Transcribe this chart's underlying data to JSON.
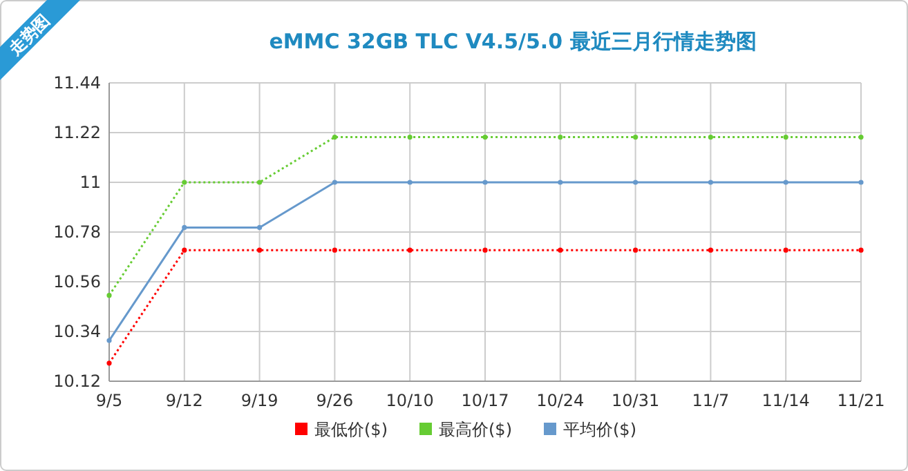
{
  "chart_data": {
    "type": "line",
    "title": "eMMC 32GB TLC V4.5/5.0 最近三月行情走势图",
    "annotations": [
      "走势图"
    ],
    "categories": [
      "9/5",
      "9/12",
      "9/19",
      "9/26",
      "10/10",
      "10/17",
      "10/24",
      "10/31",
      "11/7",
      "11/14",
      "11/21"
    ],
    "series": [
      {
        "name": "最低价($)",
        "color": "#ff0000",
        "line_style": "dotted",
        "values": [
          10.2,
          10.7,
          10.7,
          10.7,
          10.7,
          10.7,
          10.7,
          10.7,
          10.7,
          10.7,
          10.7
        ]
      },
      {
        "name": "最高价($)",
        "color": "#66cc33",
        "line_style": "dotted",
        "values": [
          10.5,
          11,
          11,
          11.2,
          11.2,
          11.2,
          11.2,
          11.2,
          11.2,
          11.2,
          11.2
        ]
      },
      {
        "name": "平均价($)",
        "color": "#6699cc",
        "line_style": "solid",
        "values": [
          10.3,
          10.8,
          10.8,
          11,
          11,
          11,
          11,
          11,
          11,
          11,
          11
        ]
      }
    ],
    "ylim": [
      10.12,
      11.44
    ],
    "yticks": [
      10.12,
      10.34,
      10.56,
      10.78,
      11,
      11.22,
      11.44
    ],
    "grid": true,
    "legend": "bottom",
    "marker": "circle"
  }
}
